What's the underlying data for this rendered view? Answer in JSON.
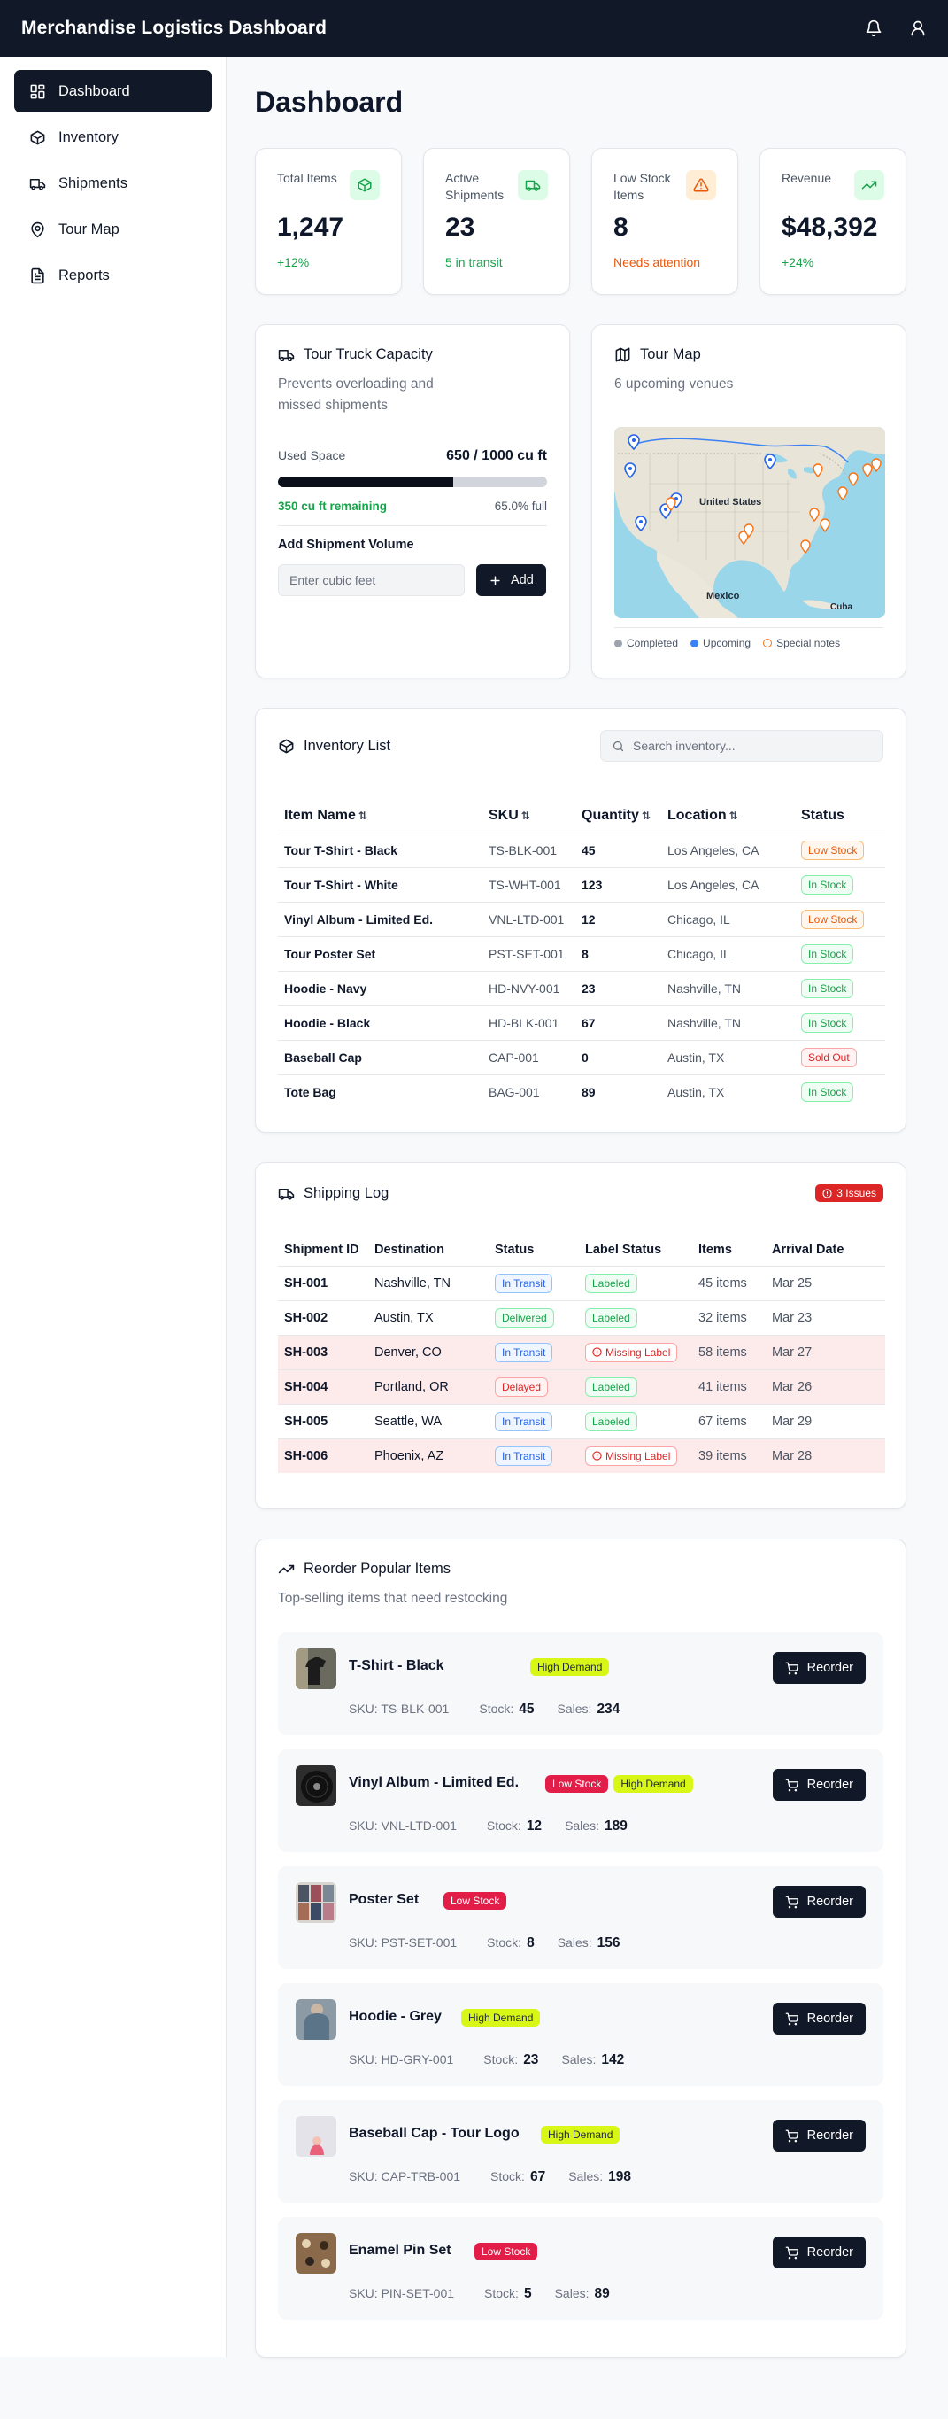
{
  "app": {
    "title": "Merchandise Logistics Dashboard"
  },
  "sidebar": {
    "items": [
      {
        "label": "Dashboard",
        "icon": "dashboard-icon",
        "active": true
      },
      {
        "label": "Inventory",
        "icon": "package-icon"
      },
      {
        "label": "Shipments",
        "icon": "truck-icon"
      },
      {
        "label": "Tour Map",
        "icon": "map-pin-icon"
      },
      {
        "label": "Reports",
        "icon": "file-text-icon"
      }
    ]
  },
  "page": {
    "title": "Dashboard"
  },
  "stats": [
    {
      "label": "Total Items",
      "value": "1,247",
      "sub": "+12%",
      "sub_color": "#16a34a",
      "icon": "package-icon",
      "icon_bg": "#dcfce7",
      "icon_color": "#16a34a"
    },
    {
      "label": "Active Shipments",
      "value": "23",
      "sub": "5 in transit",
      "sub_color": "#16a34a",
      "icon": "truck-icon",
      "icon_bg": "#dcfce7",
      "icon_color": "#16a34a"
    },
    {
      "label": "Low Stock Items",
      "value": "8",
      "sub": "Needs attention",
      "sub_color": "#ea580c",
      "icon": "alert-triangle-icon",
      "icon_bg": "#ffedd5",
      "icon_color": "#ea580c"
    },
    {
      "label": "Revenue",
      "value": "$48,392",
      "sub": "+24%",
      "sub_color": "#16a34a",
      "icon": "trending-up-icon",
      "icon_bg": "#dcfce7",
      "icon_color": "#16a34a"
    }
  ],
  "capacity": {
    "title": "Tour Truck Capacity",
    "subtitle": "Prevents overloading and missed shipments",
    "used_label": "Used Space",
    "used_value": "650 / 1000 cu ft",
    "fill_fraction": 0.65,
    "remaining": "350 cu ft remaining",
    "percent": "65.0% full",
    "add_label": "Add Shipment Volume",
    "input_placeholder": "Enter cubic feet",
    "add_button": "Add"
  },
  "tour_map": {
    "title": "Tour Map",
    "subtitle": "6 upcoming venues",
    "labels": {
      "country": "United States",
      "mexico": "Mexico",
      "cuba": "Cuba"
    },
    "legend": [
      {
        "label": "Completed",
        "color": "#9ca3af"
      },
      {
        "label": "Upcoming",
        "color": "#3b82f6"
      },
      {
        "label": "Special notes",
        "color": "#f97316"
      }
    ]
  },
  "inventory": {
    "title": "Inventory List",
    "search_placeholder": "Search inventory...",
    "columns": [
      "Item Name",
      "SKU",
      "Quantity",
      "Location",
      "Status"
    ],
    "sort_glyph": "⇅",
    "rows": [
      {
        "name": "Tour T-Shirt - Black",
        "sku": "TS-BLK-001",
        "qty": "45",
        "location": "Los Angeles, CA",
        "status": "Low Stock",
        "kind": "low"
      },
      {
        "name": "Tour T-Shirt - White",
        "sku": "TS-WHT-001",
        "qty": "123",
        "location": "Los Angeles, CA",
        "status": "In Stock",
        "kind": "in"
      },
      {
        "name": "Vinyl Album - Limited Ed.",
        "sku": "VNL-LTD-001",
        "qty": "12",
        "location": "Chicago, IL",
        "status": "Low Stock",
        "kind": "low"
      },
      {
        "name": "Tour Poster Set",
        "sku": "PST-SET-001",
        "qty": "8",
        "location": "Chicago, IL",
        "status": "In Stock",
        "kind": "in"
      },
      {
        "name": "Hoodie - Navy",
        "sku": "HD-NVY-001",
        "qty": "23",
        "location": "Nashville, TN",
        "status": "In Stock",
        "kind": "in"
      },
      {
        "name": "Hoodie - Black",
        "sku": "HD-BLK-001",
        "qty": "67",
        "location": "Nashville, TN",
        "status": "In Stock",
        "kind": "in"
      },
      {
        "name": "Baseball Cap",
        "sku": "CAP-001",
        "qty": "0",
        "location": "Austin, TX",
        "status": "Sold Out",
        "kind": "sold"
      },
      {
        "name": "Tote Bag",
        "sku": "BAG-001",
        "qty": "89",
        "location": "Austin, TX",
        "status": "In Stock",
        "kind": "in"
      }
    ]
  },
  "shipping": {
    "title": "Shipping Log",
    "issues_badge": "3 Issues",
    "columns": [
      "Shipment ID",
      "Destination",
      "Status",
      "Label Status",
      "Items",
      "Arrival Date"
    ],
    "rows": [
      {
        "id": "SH-001",
        "dest": "Nashville, TN",
        "status": "In Transit",
        "status_kind": "transit",
        "label": "Labeled",
        "label_kind": "labeled",
        "items": "45 items",
        "date": "Mar 25",
        "issue": false
      },
      {
        "id": "SH-002",
        "dest": "Austin, TX",
        "status": "Delivered",
        "status_kind": "delivered",
        "label": "Labeled",
        "label_kind": "labeled",
        "items": "32 items",
        "date": "Mar 23",
        "issue": false
      },
      {
        "id": "SH-003",
        "dest": "Denver, CO",
        "status": "In Transit",
        "status_kind": "transit",
        "label": "Missing Label",
        "label_kind": "missing",
        "items": "58 items",
        "date": "Mar 27",
        "issue": true
      },
      {
        "id": "SH-004",
        "dest": "Portland, OR",
        "status": "Delayed",
        "status_kind": "delayed",
        "label": "Labeled",
        "label_kind": "labeled",
        "items": "41 items",
        "date": "Mar 26",
        "issue": true
      },
      {
        "id": "SH-005",
        "dest": "Seattle, WA",
        "status": "In Transit",
        "status_kind": "transit",
        "label": "Labeled",
        "label_kind": "labeled",
        "items": "67 items",
        "date": "Mar 29",
        "issue": false
      },
      {
        "id": "SH-006",
        "dest": "Phoenix, AZ",
        "status": "In Transit",
        "status_kind": "transit",
        "label": "Missing Label",
        "label_kind": "missing",
        "items": "39 items",
        "date": "Mar 28",
        "issue": true
      }
    ]
  },
  "reorder": {
    "title": "Reorder Popular Items",
    "subtitle": "Top-selling items that need restocking",
    "button_label": "Reorder",
    "stock_label": "Stock:",
    "sales_label": "Sales:",
    "items": [
      {
        "name": "T-Shirt - Black",
        "sku": "SKU: TS-BLK-001",
        "stock": "45",
        "sales": "234",
        "tags": [
          "High Demand"
        ],
        "thumb": "tshirt"
      },
      {
        "name": "Vinyl Album - Limited Ed.",
        "sku": "SKU: VNL-LTD-001",
        "stock": "12",
        "sales": "189",
        "tags": [
          "Low Stock",
          "High Demand"
        ],
        "thumb": "vinyl"
      },
      {
        "name": "Poster Set",
        "sku": "SKU: PST-SET-001",
        "stock": "8",
        "sales": "156",
        "tags": [
          "Low Stock"
        ],
        "thumb": "poster"
      },
      {
        "name": "Hoodie - Grey",
        "sku": "SKU: HD-GRY-001",
        "stock": "23",
        "sales": "142",
        "tags": [
          "High Demand"
        ],
        "thumb": "hoodie"
      },
      {
        "name": "Baseball Cap - Tour Logo",
        "sku": "SKU: CAP-TRB-001",
        "stock": "67",
        "sales": "198",
        "tags": [
          "High Demand"
        ],
        "thumb": "cap"
      },
      {
        "name": "Enamel Pin Set",
        "sku": "SKU: PIN-SET-001",
        "stock": "5",
        "sales": "89",
        "tags": [
          "Low Stock"
        ],
        "thumb": "pins"
      }
    ]
  }
}
